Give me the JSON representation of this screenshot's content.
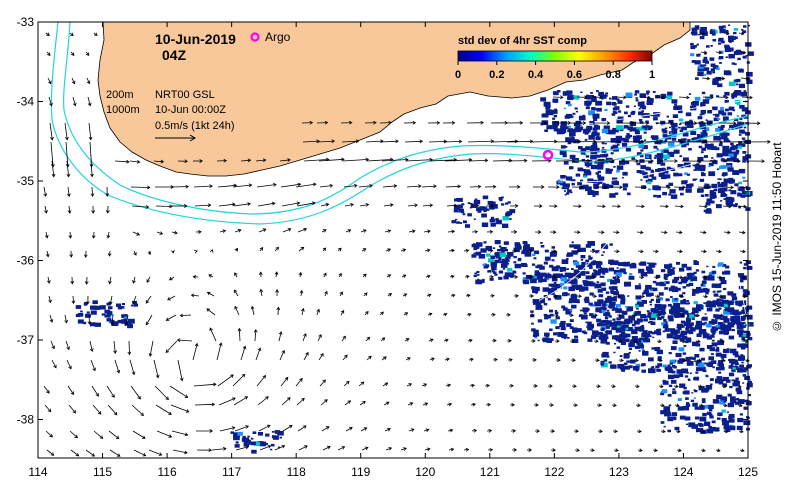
{
  "header": {
    "date": "10-Jun-2019",
    "hour": "04Z",
    "argo_label": "Argo"
  },
  "legend": {
    "depth_200": "200m",
    "depth_1000": "1000m",
    "product": "NRT00 GSL",
    "time": "10-Jun 00:00Z",
    "scale": "0.5m/s (1kt 24h)"
  },
  "colorbar": {
    "title": "std dev of 4hr SST comp",
    "ticks": [
      "0",
      "0.2",
      "0.4",
      "0.6",
      "0.8",
      "1"
    ],
    "colors": [
      "#00008b",
      "#0000ff",
      "#00a0ff",
      "#00ffc0",
      "#80ff00",
      "#ffff00",
      "#ffa000",
      "#ff3000",
      "#800000"
    ]
  },
  "axes": {
    "x_ticks": [
      "114",
      "115",
      "116",
      "117",
      "118",
      "119",
      "120",
      "121",
      "122",
      "123",
      "124",
      "125"
    ],
    "y_ticks": [
      "-33",
      "-34",
      "-35",
      "-36",
      "-37",
      "-38"
    ]
  },
  "credit": "© IMOS 15-Jun-2019 11:50 Hobart",
  "colors": {
    "land": "#f8c89a",
    "sst_fill": "#0a1e8c",
    "isobath": "#22d4e0",
    "argo": "#ff00ff"
  }
}
